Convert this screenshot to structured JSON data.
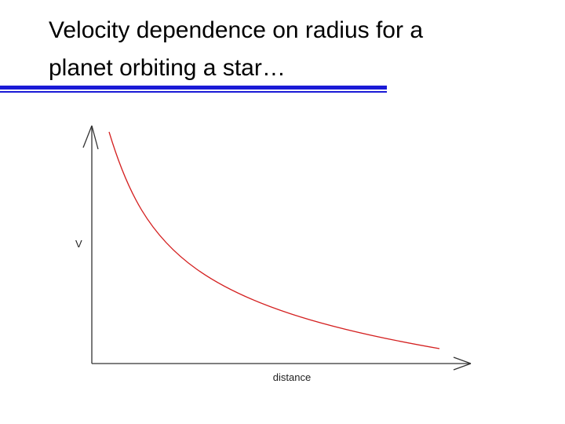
{
  "header": {
    "title_lines": [
      "Velocity dependence on radius for a",
      "planet orbiting a star…"
    ]
  },
  "diagram": {
    "y_label": "V",
    "x_label": "distance"
  }
}
